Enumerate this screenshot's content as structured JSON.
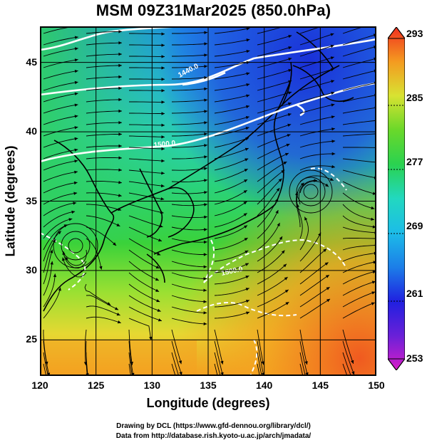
{
  "title": "MSM 09Z31Mar2025 (850.0hPa)",
  "x_axis": {
    "label": "Longitude (degrees)",
    "ticks": [
      "120",
      "125",
      "130",
      "135",
      "140",
      "145",
      "150"
    ],
    "range": [
      120,
      150
    ]
  },
  "y_axis": {
    "label": "Latitude  (degrees)",
    "ticks": [
      "25",
      "30",
      "35",
      "40",
      "45"
    ],
    "range": [
      22.4,
      47.6
    ]
  },
  "colorbar": {
    "ticks": [
      "293",
      "285",
      "277",
      "269",
      "261",
      "253"
    ],
    "range": [
      253,
      293
    ],
    "colors": [
      "#c21ec8",
      "#2020e0",
      "#1c8ee8",
      "#22d8d8",
      "#22d48a",
      "#2ad22a",
      "#9ae032",
      "#e6e632",
      "#f4a020",
      "#f04020"
    ]
  },
  "contour_labels": [
    "1440.0",
    "1500.0",
    "1500.0"
  ],
  "credits": [
    "Drawing by DCL (https://www.gfd-dennou.org/library/dcl/)",
    "Data from http://database.rish.kyoto-u.ac.jp/arch/jmadata/"
  ]
}
